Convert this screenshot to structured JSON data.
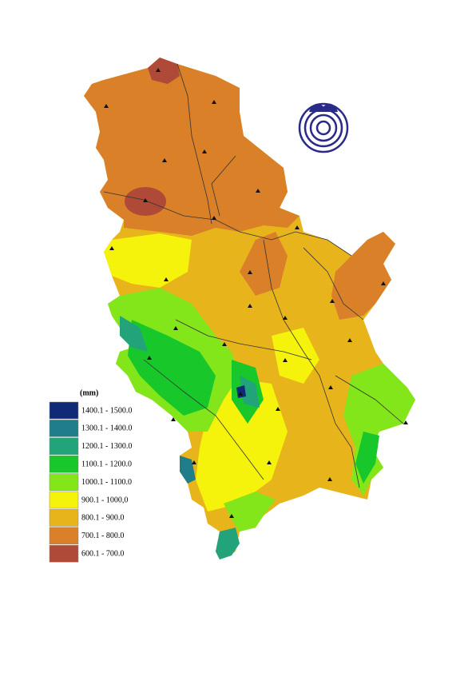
{
  "legend": {
    "title": "(mm)",
    "items": [
      {
        "label": "1400.1 - 1500.0",
        "color": "#102a78"
      },
      {
        "label": "1300.1 - 1400.0",
        "color": "#1f7e8a"
      },
      {
        "label": "1200.1 - 1300.0",
        "color": "#22a37a"
      },
      {
        "label": "1100.1 - 1200.0",
        "color": "#18c82a"
      },
      {
        "label": "1000.1 - 1100.0",
        "color": "#82e61a"
      },
      {
        "label": "900.1 - 1000,0",
        "color": "#f5f20c"
      },
      {
        "label": "800.1 - 900.0",
        "color": "#e8b41c"
      },
      {
        "label": "700.1 - 800.0",
        "color": "#d98028"
      },
      {
        "label": "600.1 - 700.0",
        "color": "#b04a38"
      }
    ]
  }
}
